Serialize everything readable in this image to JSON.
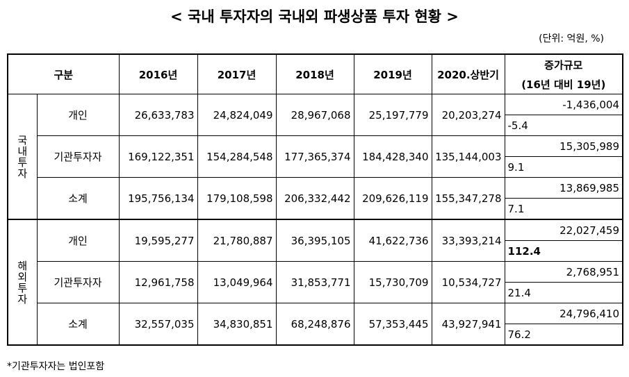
{
  "title": "< 국내 투자자의 국내외 파생상품 투자 현황 >",
  "unit": "(단위: 억원, %)",
  "table": {
    "header": {
      "category": "구분",
      "years": [
        "2016년",
        "2017년",
        "2018년",
        "2019년",
        "2020.상반기"
      ],
      "change": [
        "증가규모",
        "(16년 대비 19년)"
      ]
    },
    "groups": [
      {
        "label": "국내투자",
        "rows": [
          {
            "label": "개인",
            "values": [
              "26,633,783",
              "24,824,049",
              "28,967,068",
              "25,197,779",
              "20,203,274"
            ],
            "change": "-1,436,004",
            "change_rate": "-5.4"
          },
          {
            "label": "기관투자자",
            "values": [
              "169,122,351",
              "154,284,548",
              "177,365,374",
              "184,428,340",
              "135,144,003"
            ],
            "change": "15,305,989",
            "change_rate": "9.1"
          },
          {
            "label": "소계",
            "values": [
              "195,756,134",
              "179,108,598",
              "206,332,442",
              "209,626,119",
              "155,347,278"
            ],
            "change": "13,869,985",
            "change_rate": "7.1"
          }
        ]
      },
      {
        "label": "해외투자",
        "rows": [
          {
            "label": "개인",
            "values": [
              "19,595,277",
              "21,780,887",
              "36,395,105",
              "41,622,736",
              "33,393,214"
            ],
            "change": "22,027,459",
            "change_rate": "112.4"
          },
          {
            "label": "기관투자자",
            "values": [
              "12,961,758",
              "13,049,964",
              "31,853,771",
              "15,730,709",
              "10,534,727"
            ],
            "change": "2,768,951",
            "change_rate": "21.4"
          },
          {
            "label": "소계",
            "values": [
              "32,557,035",
              "34,830,851",
              "68,248,876",
              "57,353,445",
              "43,927,941"
            ],
            "change": "24,796,410",
            "change_rate": "76.2"
          }
        ]
      }
    ]
  },
  "footnote": "*기관투자자는 법인포함"
}
